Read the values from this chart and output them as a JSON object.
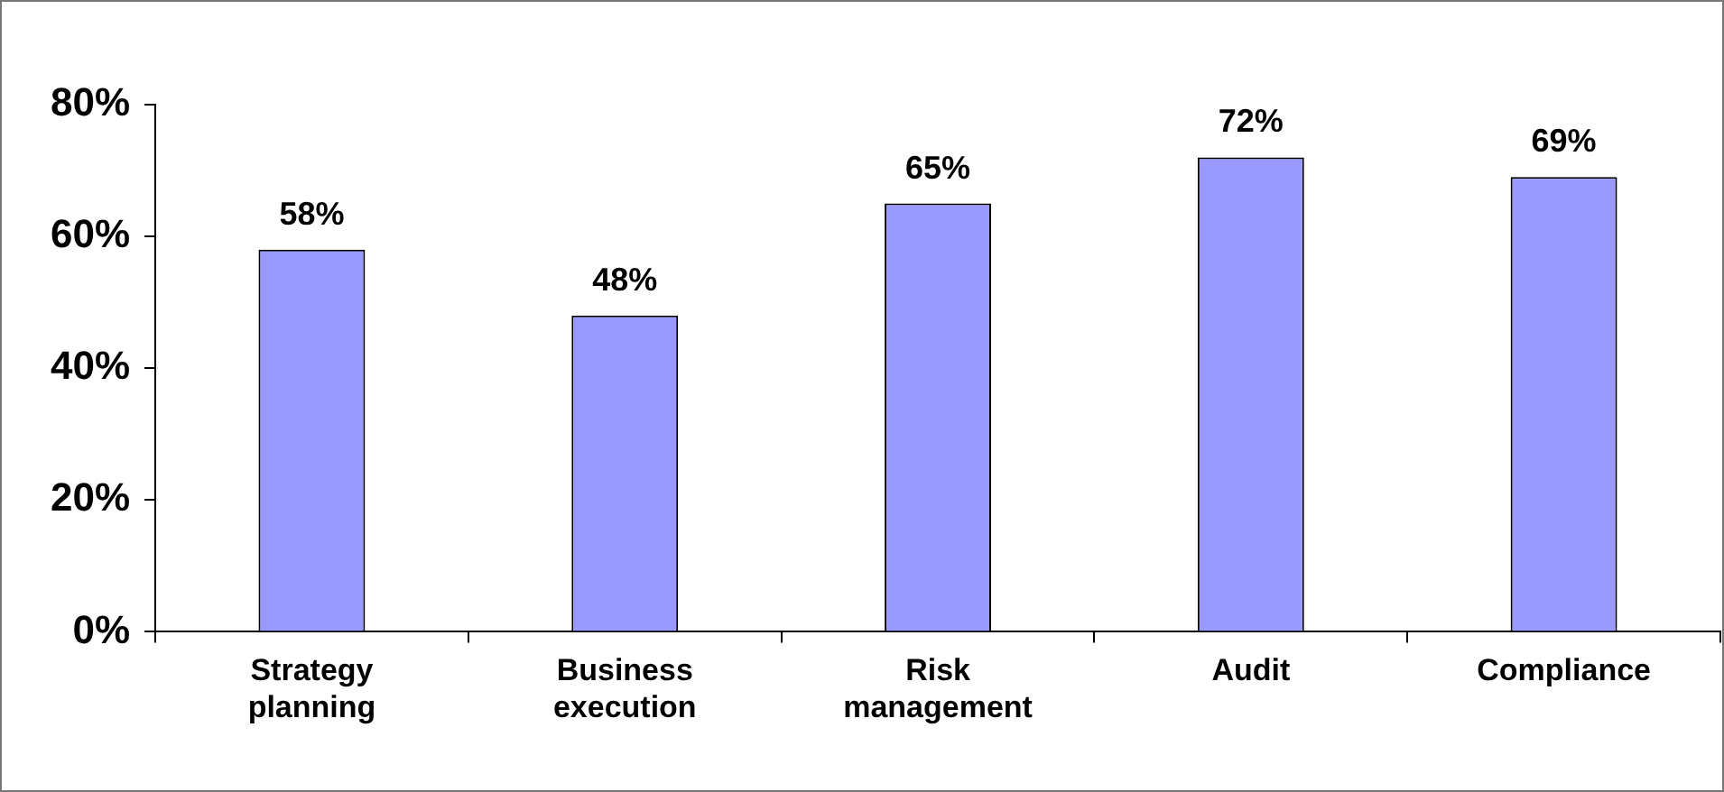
{
  "chart_data": {
    "type": "bar",
    "categories": [
      "Strategy planning",
      "Business execution",
      "Risk management",
      "Audit",
      "Compliance"
    ],
    "values": [
      58,
      48,
      65,
      72,
      69
    ],
    "color": "#9999ff",
    "value_labels": [
      "58%",
      "48%",
      "65%",
      "72%",
      "69%"
    ],
    "ylim": [
      0,
      80
    ],
    "yticks": [
      {
        "value": 0,
        "label": "0%"
      },
      {
        "value": 20,
        "label": "20%"
      },
      {
        "value": 40,
        "label": "40%"
      },
      {
        "value": 60,
        "label": "60%"
      },
      {
        "value": 80,
        "label": "80%"
      }
    ],
    "grid": false,
    "legend": false
  }
}
